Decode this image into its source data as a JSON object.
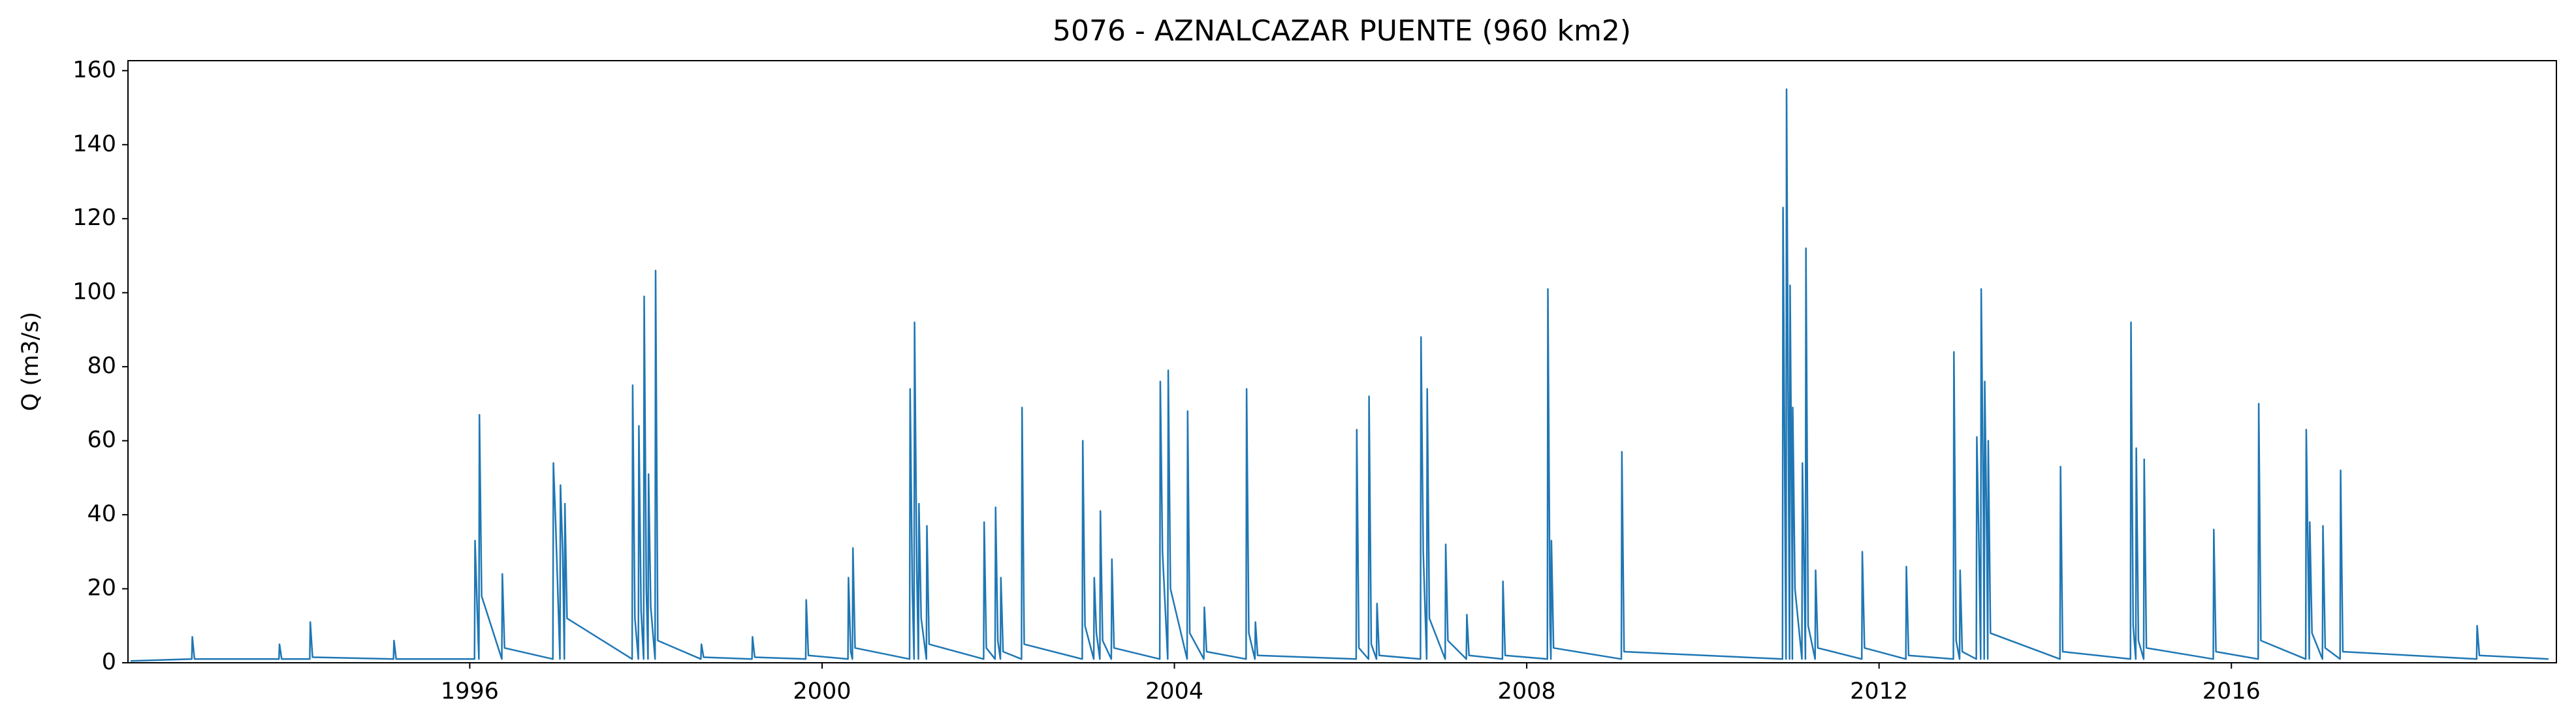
{
  "chart_data": {
    "type": "line",
    "title": "5076 - AZNALCAZAR PUENTE (960 km2)",
    "ylabel": "Q (m3/s)",
    "color": "#1f77b4",
    "xlim": [
      1992.12,
      2019.69
    ],
    "xticks": [
      1996,
      2000,
      2004,
      2008,
      2012,
      2016
    ],
    "ylim": [
      0,
      162.7
    ],
    "yticks": [
      0,
      20,
      40,
      60,
      80,
      100,
      120,
      140,
      160
    ],
    "x": [
      1992.15,
      1992.844,
      1992.85,
      1992.875,
      1993.834,
      1993.84,
      1993.865,
      1994.184,
      1994.19,
      1994.215,
      1995.134,
      1995.14,
      1995.165,
      1996.054,
      1996.06,
      1996.085,
      1996.104,
      1996.11,
      1996.135,
      1996.364,
      1996.37,
      1996.395,
      1996.944,
      1996.95,
      1996.975,
      1997.024,
      1997.03,
      1997.055,
      1997.074,
      1997.08,
      1997.105,
      1997.844,
      1997.85,
      1997.875,
      1997.914,
      1997.92,
      1997.945,
      1997.974,
      1997.98,
      1998.005,
      1998.024,
      1998.03,
      1998.055,
      1998.104,
      1998.11,
      1998.135,
      1998.624,
      1998.63,
      1998.655,
      1999.204,
      1999.21,
      1999.235,
      1999.814,
      1999.82,
      1999.845,
      2000.294,
      2000.3,
      2000.325,
      2000.344,
      2000.35,
      2000.375,
      2000.994,
      2001,
      2001.025,
      2001.044,
      2001.05,
      2001.075,
      2001.094,
      2001.1,
      2001.125,
      2001.184,
      2001.19,
      2001.215,
      2001.834,
      2001.84,
      2001.865,
      2001.964,
      2001.97,
      2001.995,
      2002.024,
      2002.03,
      2002.055,
      2002.264,
      2002.27,
      2002.295,
      2002.954,
      2002.96,
      2002.985,
      2003.084,
      2003.09,
      2003.115,
      2003.154,
      2003.16,
      2003.185,
      2003.284,
      2003.29,
      2003.315,
      2003.834,
      2003.84,
      2003.865,
      2003.924,
      2003.93,
      2003.955,
      2004.144,
      2004.15,
      2004.175,
      2004.334,
      2004.34,
      2004.365,
      2004.814,
      2004.82,
      2004.845,
      2004.914,
      2004.92,
      2004.945,
      2006.064,
      2006.07,
      2006.095,
      2006.204,
      2006.21,
      2006.235,
      2006.294,
      2006.3,
      2006.325,
      2006.794,
      2006.8,
      2006.825,
      2006.864,
      2006.87,
      2006.895,
      2007.074,
      2007.08,
      2007.105,
      2007.314,
      2007.32,
      2007.345,
      2007.724,
      2007.73,
      2007.755,
      2008.234,
      2008.24,
      2008.265,
      2008.274,
      2008.28,
      2008.305,
      2009.074,
      2009.08,
      2009.105,
      2010.904,
      2010.91,
      2010.935,
      2010.944,
      2010.95,
      2010.975,
      2010.984,
      2010.99,
      2011.012,
      2011.016,
      2011.02,
      2011.045,
      2011.124,
      2011.13,
      2011.155,
      2011.164,
      2011.17,
      2011.195,
      2011.274,
      2011.28,
      2011.305,
      2011.804,
      2011.81,
      2011.835,
      2012.304,
      2012.31,
      2012.335,
      2012.844,
      2012.85,
      2012.875,
      2012.914,
      2012.92,
      2012.945,
      2013.104,
      2013.11,
      2013.135,
      2013.154,
      2013.16,
      2013.185,
      2013.194,
      2013.2,
      2013.225,
      2013.234,
      2013.24,
      2013.265,
      2014.054,
      2014.06,
      2014.085,
      2014.854,
      2014.86,
      2014.885,
      2014.914,
      2014.92,
      2014.945,
      2015.004,
      2015.01,
      2015.035,
      2015.794,
      2015.8,
      2015.825,
      2016.304,
      2016.31,
      2016.335,
      2016.844,
      2016.85,
      2016.875,
      2016.884,
      2016.89,
      2016.915,
      2017.034,
      2017.04,
      2017.065,
      2017.234,
      2017.24,
      2017.265,
      2018.784,
      2018.79,
      2018.815,
      2019.6
    ],
    "values": [
      0.5,
      1,
      7,
      1,
      1,
      5,
      1,
      1,
      11,
      1.5,
      1,
      6,
      1,
      1,
      33,
      14,
      1,
      67,
      18,
      1,
      24,
      4,
      1,
      54,
      38,
      1,
      48,
      30,
      1,
      43,
      12,
      1,
      75,
      12,
      1,
      64,
      14,
      1,
      99,
      20,
      1,
      51,
      15,
      1,
      106,
      6,
      1,
      5,
      1.5,
      1,
      7,
      1.5,
      1,
      17,
      2,
      1,
      23,
      3,
      1,
      31,
      4,
      1,
      74,
      20,
      1,
      92,
      25,
      1,
      43,
      12,
      1,
      37,
      5,
      1,
      38,
      4,
      1,
      42,
      6,
      1,
      23,
      3,
      1,
      69,
      5,
      1,
      60,
      10,
      1,
      23,
      8,
      1,
      41,
      6,
      1,
      28,
      4,
      1,
      76,
      30,
      1,
      79,
      20,
      1,
      68,
      8,
      1,
      15,
      3,
      1,
      74,
      8,
      1,
      11,
      2,
      1,
      63,
      4,
      1,
      72,
      5,
      1,
      16,
      2,
      1,
      88,
      30,
      1,
      74,
      12,
      1,
      32,
      6,
      1,
      13,
      2,
      1,
      22,
      2,
      1,
      101,
      10,
      1,
      33,
      4,
      1,
      57,
      3,
      1,
      123,
      30,
      1,
      155,
      40,
      1,
      102,
      30,
      1,
      69,
      20,
      1,
      54,
      15,
      1,
      112,
      10,
      1,
      25,
      4,
      1,
      30,
      4,
      1,
      26,
      2,
      1,
      84,
      6,
      1,
      25,
      3,
      1,
      61,
      30,
      1,
      101,
      40,
      1,
      76,
      30,
      1,
      60,
      8,
      1,
      53,
      3,
      1,
      92,
      10,
      1,
      58,
      6,
      1,
      55,
      4,
      1,
      36,
      3,
      1,
      70,
      6,
      1,
      63,
      20,
      1,
      38,
      8,
      1,
      37,
      4,
      1,
      52,
      3,
      1,
      10,
      2,
      1
    ]
  }
}
